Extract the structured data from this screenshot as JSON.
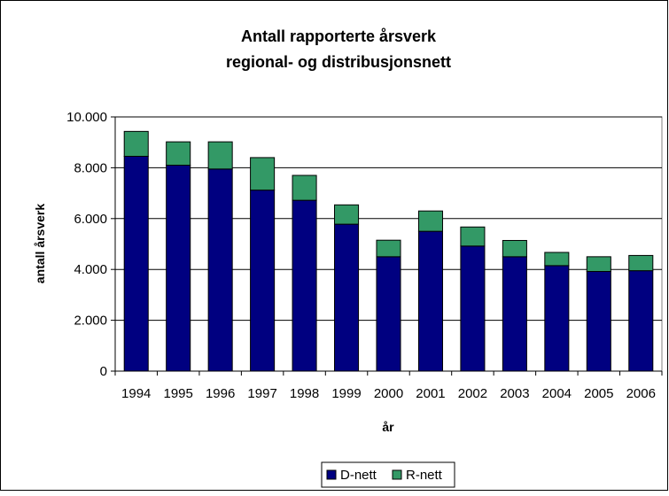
{
  "chart_data": {
    "type": "bar",
    "stacked": true,
    "title_lines": [
      "Antall rapporterte årsverk",
      "regional- og distribusjonsnett"
    ],
    "xlabel": "år",
    "ylabel": "antall årsverk",
    "categories": [
      "1994",
      "1995",
      "1996",
      "1997",
      "1998",
      "1999",
      "2000",
      "2001",
      "2002",
      "2003",
      "2004",
      "2005",
      "2006"
    ],
    "series": [
      {
        "name": "D-nett",
        "color": "#000080",
        "values": [
          8450,
          8100,
          7950,
          7120,
          6720,
          5780,
          4500,
          5500,
          4920,
          4500,
          4150,
          3920,
          3950
        ]
      },
      {
        "name": "R-nett",
        "color": "#339966",
        "values": [
          980,
          920,
          1070,
          1280,
          980,
          760,
          650,
          800,
          750,
          640,
          520,
          580,
          600
        ]
      }
    ],
    "ylim": [
      0,
      10000
    ],
    "yticks": [
      0,
      2000,
      4000,
      6000,
      8000,
      10000
    ],
    "ytick_labels": [
      "0",
      "2.000",
      "4.000",
      "6.000",
      "8.000",
      "10.000"
    ],
    "grid": true,
    "legend_position": "bottom"
  }
}
